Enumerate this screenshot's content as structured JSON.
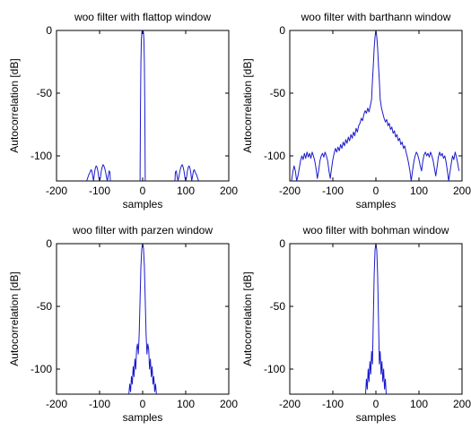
{
  "chart_data": [
    {
      "type": "line",
      "title": "woo filter with flattop window",
      "xlabel": "samples",
      "ylabel": "Autocorrelation [dB]",
      "xlim": [
        -200,
        200
      ],
      "ylim": [
        -120,
        0
      ],
      "xticks": [
        "-200",
        "-100",
        "0",
        "100",
        "200"
      ],
      "yticks": [
        "0",
        "-50",
        "-100"
      ],
      "grid": false,
      "series": [
        {
          "color": "#1a1acc",
          "x": [
            -130,
            -125,
            -122,
            -120,
            -118,
            -116,
            -114,
            -112,
            -110,
            -108,
            -106,
            -104,
            -102,
            -100,
            -98,
            -96,
            -94,
            -92,
            -90,
            -88,
            -86,
            -84,
            -82,
            -80,
            -78,
            -76,
            -75,
            null,
            -6,
            -5,
            -4,
            -3,
            -2,
            -1,
            0,
            1,
            2,
            3,
            4,
            5,
            6,
            null,
            75,
            76,
            78,
            80,
            82,
            84,
            86,
            88,
            90,
            92,
            94,
            96,
            98,
            100,
            102,
            104,
            106,
            108,
            110,
            112,
            114,
            116,
            118,
            120,
            122,
            125,
            130
          ],
          "y": [
            -120,
            -115,
            -113,
            -111,
            -112,
            -116,
            -120,
            -114,
            -110,
            -108,
            -109,
            -112,
            -117,
            -120,
            -117,
            -112,
            -109,
            -107,
            -108,
            -110,
            -113,
            -117,
            -120,
            -116,
            -112,
            -113,
            -120,
            null,
            -120,
            -60,
            -25,
            -8,
            -2,
            0,
            0,
            0,
            -2,
            -8,
            -25,
            -60,
            -120,
            null,
            -120,
            -113,
            -112,
            -116,
            -120,
            -117,
            -113,
            -110,
            -108,
            -107,
            -109,
            -112,
            -117,
            -120,
            -117,
            -112,
            -109,
            -108,
            -110,
            -114,
            -120,
            -116,
            -112,
            -111,
            -113,
            -115,
            -120
          ]
        }
      ]
    },
    {
      "type": "line",
      "title": "woo filter with barthann window",
      "xlabel": "samples",
      "ylabel": "Autocorrelation [dB]",
      "xlim": [
        -200,
        200
      ],
      "ylim": [
        -120,
        0
      ],
      "xticks": [
        "-200",
        "-100",
        "0",
        "100",
        "200"
      ],
      "yticks": [
        "0",
        "-50",
        "-100"
      ],
      "grid": false,
      "series": [
        {
          "color": "#1a1acc",
          "x": [
            -196,
            -193,
            -190,
            -187,
            -184,
            -181,
            -178,
            -175,
            -172,
            -169,
            -166,
            -163,
            -160,
            -157,
            -154,
            -151,
            -148,
            -145,
            -142,
            -139,
            -136,
            -133,
            -130,
            -127,
            -124,
            -121,
            -118,
            -115,
            -112,
            -109,
            -106,
            -103,
            -100,
            -97,
            -94,
            -91,
            -88,
            -85,
            -82,
            -79,
            -76,
            -73,
            -70,
            -67,
            -64,
            -61,
            -58,
            -55,
            -52,
            -49,
            -46,
            -43,
            -40,
            -37,
            -34,
            -31,
            -28,
            -25,
            -22,
            -19,
            -16,
            -13,
            -10,
            -8,
            -6,
            -4,
            -2,
            0,
            2,
            4,
            6,
            8,
            10,
            13,
            16,
            19,
            22,
            25,
            28,
            31,
            34,
            37,
            40,
            43,
            46,
            49,
            52,
            55,
            58,
            61,
            64,
            67,
            70,
            73,
            76,
            79,
            82,
            85,
            88,
            91,
            94,
            97,
            100,
            103,
            106,
            109,
            112,
            115,
            118,
            121,
            124,
            127,
            130,
            133,
            136,
            139,
            142,
            145,
            148,
            151,
            154,
            157,
            160,
            163,
            166,
            169,
            172,
            175,
            178,
            181,
            184,
            187,
            190,
            193
          ],
          "y": [
            -120,
            -113,
            -108,
            -112,
            -120,
            -116,
            -110,
            -104,
            -100,
            -103,
            -98,
            -102,
            -97,
            -101,
            -98,
            -102,
            -97,
            -100,
            -104,
            -110,
            -118,
            -112,
            -104,
            -100,
            -98,
            -101,
            -97,
            -100,
            -104,
            -112,
            -118,
            -110,
            -103,
            -98,
            -94,
            -97,
            -93,
            -96,
            -91,
            -94,
            -89,
            -92,
            -87,
            -90,
            -85,
            -88,
            -83,
            -86,
            -81,
            -84,
            -78,
            -81,
            -76,
            -74,
            -70,
            -72,
            -67,
            -64,
            -66,
            -62,
            -65,
            -60,
            -55,
            -40,
            -28,
            -14,
            -5,
            0,
            -5,
            -14,
            -28,
            -40,
            -55,
            -62,
            -66,
            -70,
            -73,
            -71,
            -76,
            -74,
            -79,
            -77,
            -82,
            -80,
            -85,
            -83,
            -88,
            -86,
            -91,
            -89,
            -94,
            -92,
            -97,
            -101,
            -106,
            -112,
            -120,
            -112,
            -105,
            -100,
            -97,
            -99,
            -103,
            -108,
            -112,
            -104,
            -99,
            -97,
            -100,
            -98,
            -101,
            -97,
            -100,
            -104,
            -110,
            -116,
            -109,
            -101,
            -97,
            -100,
            -98,
            -102,
            -100,
            -105,
            -112,
            -120,
            -113,
            -106,
            -100,
            -103,
            -97,
            -101,
            -106,
            -112
          ]
        }
      ]
    },
    {
      "type": "line",
      "title": "woo filter with parzen window",
      "xlabel": "samples",
      "ylabel": "Autocorrelation [dB]",
      "xlim": [
        -200,
        200
      ],
      "ylim": [
        -120,
        0
      ],
      "xticks": [
        "-200",
        "-100",
        "0",
        "100",
        "200"
      ],
      "yticks": [
        "0",
        "-50",
        "-100"
      ],
      "grid": false,
      "series": [
        {
          "color": "#1a1acc",
          "x": [
            -32,
            -30,
            -28,
            -26,
            -24,
            -22,
            -20,
            -18,
            -16,
            -14,
            -12,
            -10,
            -8,
            -6,
            -4,
            -2,
            0,
            2,
            4,
            6,
            8,
            10,
            12,
            14,
            16,
            18,
            20,
            22,
            24,
            26,
            28,
            30,
            32
          ],
          "y": [
            -120,
            -112,
            -118,
            -106,
            -112,
            -98,
            -106,
            -92,
            -100,
            -84,
            -80,
            -88,
            -72,
            -45,
            -18,
            -4,
            0,
            -4,
            -18,
            -45,
            -72,
            -88,
            -80,
            -84,
            -100,
            -92,
            -106,
            -98,
            -112,
            -106,
            -118,
            -112,
            -120
          ]
        }
      ]
    },
    {
      "type": "line",
      "title": "woo filter with bohman window",
      "xlabel": "samples",
      "ylabel": "Autocorrelation [dB]",
      "xlim": [
        -200,
        200
      ],
      "ylim": [
        -120,
        0
      ],
      "xticks": [
        "-200",
        "-100",
        "0",
        "100",
        "200"
      ],
      "yticks": [
        "0",
        "-50",
        "-100"
      ],
      "grid": false,
      "series": [
        {
          "color": "#1a1acc",
          "x": [
            -24,
            -22,
            -20,
            -18,
            -16,
            -14,
            -12,
            -10,
            -8,
            -6,
            -4,
            -2,
            0,
            2,
            4,
            6,
            8,
            10,
            12,
            14,
            16,
            18,
            20,
            22,
            24
          ],
          "y": [
            -120,
            -108,
            -116,
            -100,
            -110,
            -94,
            -104,
            -86,
            -96,
            -60,
            -25,
            -5,
            0,
            -5,
            -25,
            -60,
            -96,
            -86,
            -104,
            -94,
            -110,
            -100,
            -116,
            -108,
            -120
          ]
        }
      ]
    }
  ]
}
